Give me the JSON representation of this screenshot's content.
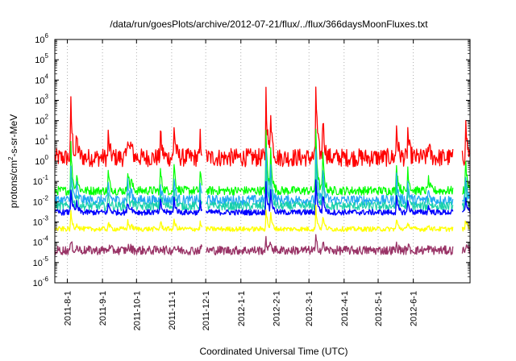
{
  "chart_data": {
    "type": "line",
    "title": "/data/run/goesPlots/archive/2012-07-21/flux/../flux/366daysMoonFluxes.txt",
    "xlabel": "Coordinated Universal Time (UTC)",
    "ylabel_parts": [
      "protons/cm",
      "2",
      "-s-sr-MeV"
    ],
    "yscale": "log",
    "ylim": [
      1e-06,
      1000000.0
    ],
    "ytick_labels": [
      {
        "base": "10",
        "exp": "-6"
      },
      {
        "base": "10",
        "exp": "-5"
      },
      {
        "base": "10",
        "exp": "-4"
      },
      {
        "base": "10",
        "exp": "-3"
      },
      {
        "base": "10",
        "exp": "-2"
      },
      {
        "base": "10",
        "exp": "-1"
      },
      {
        "base": "10",
        "exp": "0"
      },
      {
        "base": "10",
        "exp": "1"
      },
      {
        "base": "10",
        "exp": "2"
      },
      {
        "base": "10",
        "exp": "3"
      },
      {
        "base": "10",
        "exp": "4"
      },
      {
        "base": "10",
        "exp": "5"
      },
      {
        "base": "10",
        "exp": "6"
      }
    ],
    "xlim": [
      "2011-07-21",
      "2012-07-21"
    ],
    "xtick_labels": [
      "2011-8-1",
      "2011-9-1",
      "2011-10-1",
      "2011-11-1",
      "2011-12-1",
      "2012-1-1",
      "2012-2-1",
      "2012-3-1",
      "2012-4-1",
      "2012-5-1",
      "2012-6-1"
    ],
    "xtick_dates": [
      "2011-08-01",
      "2011-09-01",
      "2011-10-01",
      "2011-11-01",
      "2011-12-01",
      "2012-01-01",
      "2012-02-01",
      "2012-03-01",
      "2012-04-01",
      "2012-05-01",
      "2012-06-01"
    ],
    "grid": true,
    "events": [
      {
        "date": "2011-08-04",
        "peak": 1200
      },
      {
        "date": "2011-08-09",
        "peak": 30
      },
      {
        "date": "2011-09-06",
        "peak": 20
      },
      {
        "date": "2011-09-23",
        "peak": 50
      },
      {
        "date": "2011-09-26",
        "peak": 10
      },
      {
        "date": "2011-10-22",
        "peak": 30
      },
      {
        "date": "2011-11-03",
        "peak": 80
      },
      {
        "date": "2011-11-26",
        "peak": 20
      },
      {
        "date": "2012-01-23",
        "peak": 6000
      },
      {
        "date": "2012-01-27",
        "peak": 1500
      },
      {
        "date": "2012-03-07",
        "peak": 8000
      },
      {
        "date": "2012-03-13",
        "peak": 500
      },
      {
        "date": "2012-05-17",
        "peak": 100
      },
      {
        "date": "2012-05-27",
        "peak": 40
      },
      {
        "date": "2012-06-14",
        "peak": 10
      },
      {
        "date": "2012-07-17",
        "peak": 150
      }
    ],
    "gaps": [
      {
        "start": "2011-11-28",
        "end": "2011-12-01"
      },
      {
        "start": "2012-07-06",
        "end": "2012-07-14"
      }
    ],
    "series": [
      {
        "color": "#ff0000",
        "baseline": 1.5,
        "noise": 0.45,
        "width": 1.3
      },
      {
        "color": "#00ff00",
        "baseline": 0.035,
        "noise": 0.22,
        "width": 1.2
      },
      {
        "color": "#1fa9f3",
        "baseline": 0.012,
        "noise": 0.25,
        "width": 1.2
      },
      {
        "color": "#1ad1aa",
        "baseline": 0.006,
        "noise": 0.22,
        "width": 1.2
      },
      {
        "color": "#0000ff",
        "baseline": 0.003,
        "noise": 0.14,
        "width": 1.4
      },
      {
        "color": "#ffff00",
        "baseline": 0.00045,
        "noise": 0.12,
        "width": 1.3
      },
      {
        "color": "#993366",
        "baseline": 4e-05,
        "noise": 0.22,
        "width": 1.3
      }
    ]
  }
}
